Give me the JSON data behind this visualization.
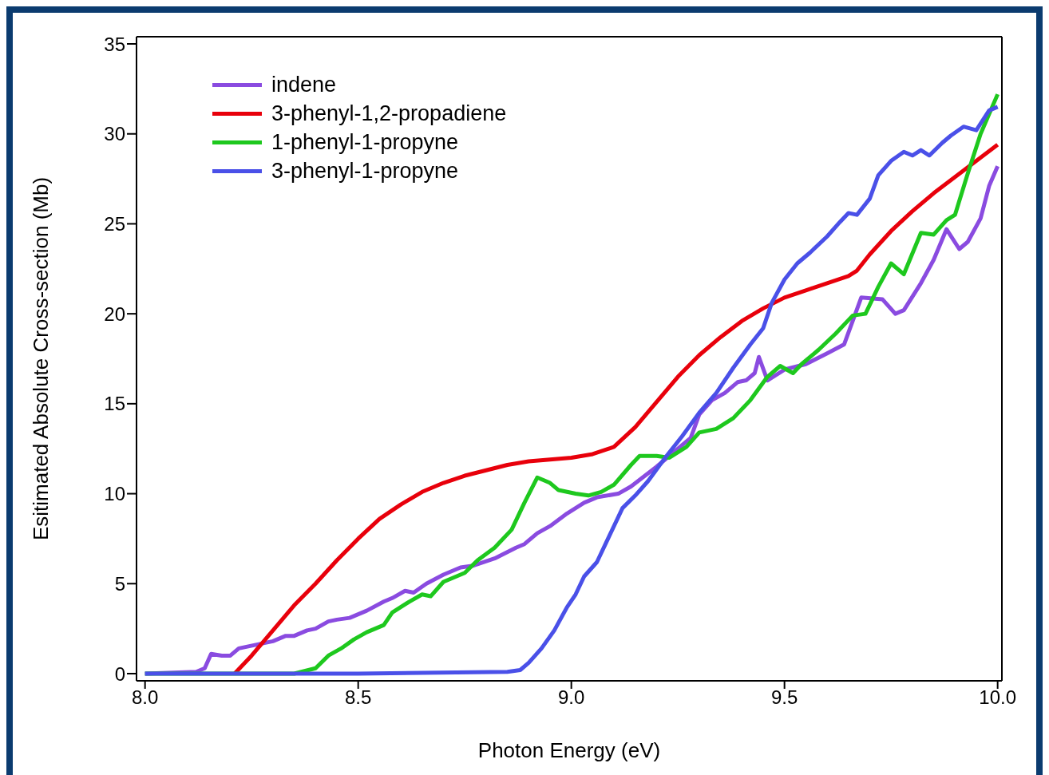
{
  "chart_data": {
    "type": "line",
    "xlabel": "Photon Energy (eV)",
    "ylabel": "Esitimated Absolute Cross-section (Mb)",
    "xlim": [
      7.98,
      10.01
    ],
    "xticks": [
      {
        "value": 8,
        "label": "8.0"
      },
      {
        "value": 8.5,
        "label": "8.5"
      },
      {
        "value": 9,
        "label": "9.0"
      },
      {
        "value": 9.5,
        "label": "9.5"
      },
      {
        "value": 10,
        "label": "10.0"
      }
    ],
    "ylim": [
      -0.4,
      35.4
    ],
    "yticks": [
      0,
      5,
      10,
      15,
      20,
      25,
      30,
      35
    ],
    "grid": false,
    "legend": "top left",
    "marker": "none",
    "line_style": "solid",
    "series": [
      {
        "name": "indene",
        "color": "#8a4be0",
        "x": [
          8.0,
          8.12,
          8.14,
          8.155,
          8.18,
          8.2,
          8.22,
          8.26,
          8.3,
          8.33,
          8.35,
          8.38,
          8.4,
          8.43,
          8.45,
          8.48,
          8.52,
          8.56,
          8.58,
          8.61,
          8.63,
          8.66,
          8.7,
          8.74,
          8.77,
          8.82,
          8.87,
          8.89,
          8.92,
          8.95,
          8.99,
          9.03,
          9.06,
          9.11,
          9.14,
          9.2,
          9.25,
          9.28,
          9.3,
          9.33,
          9.36,
          9.39,
          9.41,
          9.43,
          9.44,
          9.46,
          9.5,
          9.55,
          9.6,
          9.64,
          9.68,
          9.73,
          9.76,
          9.78,
          9.82,
          9.85,
          9.88,
          9.91,
          9.93,
          9.96,
          9.98,
          10.0
        ],
        "values": [
          0,
          0.1,
          0.3,
          1.1,
          1.0,
          1.0,
          1.4,
          1.6,
          1.8,
          2.1,
          2.1,
          2.4,
          2.5,
          2.9,
          3.0,
          3.1,
          3.5,
          4.0,
          4.2,
          4.6,
          4.5,
          5.0,
          5.5,
          5.9,
          6.0,
          6.4,
          7.0,
          7.2,
          7.8,
          8.2,
          8.9,
          9.5,
          9.8,
          10.0,
          10.4,
          11.5,
          12.5,
          13.1,
          14.4,
          15.2,
          15.6,
          16.2,
          16.3,
          16.7,
          17.6,
          16.3,
          16.9,
          17.2,
          17.8,
          18.3,
          20.9,
          20.8,
          20.0,
          20.2,
          21.7,
          23.0,
          24.7,
          23.6,
          24.0,
          25.3,
          27.1,
          28.2
        ]
      },
      {
        "name": "3-phenyl-1,2-propadiene",
        "color": "#e8000b",
        "x": [
          8.21,
          8.25,
          8.3,
          8.35,
          8.4,
          8.45,
          8.5,
          8.55,
          8.6,
          8.65,
          8.7,
          8.75,
          8.8,
          8.85,
          8.9,
          8.95,
          9.0,
          9.05,
          9.1,
          9.15,
          9.2,
          9.25,
          9.3,
          9.35,
          9.4,
          9.45,
          9.5,
          9.55,
          9.6,
          9.65,
          9.67,
          9.7,
          9.75,
          9.8,
          9.85,
          9.9,
          9.95,
          10.0
        ],
        "values": [
          0,
          1.0,
          2.4,
          3.8,
          5.0,
          6.3,
          7.5,
          8.6,
          9.4,
          10.1,
          10.6,
          11.0,
          11.3,
          11.6,
          11.8,
          11.9,
          12.0,
          12.2,
          12.6,
          13.7,
          15.1,
          16.5,
          17.7,
          18.7,
          19.6,
          20.3,
          20.9,
          21.3,
          21.7,
          22.1,
          22.4,
          23.3,
          24.6,
          25.7,
          26.7,
          27.6,
          28.5,
          29.4
        ]
      },
      {
        "name": "1-phenyl-1-propyne",
        "color": "#1ec81e",
        "x": [
          8.0,
          8.35,
          8.4,
          8.43,
          8.46,
          8.49,
          8.52,
          8.56,
          8.58,
          8.62,
          8.65,
          8.67,
          8.7,
          8.75,
          8.78,
          8.82,
          8.86,
          8.89,
          8.92,
          8.95,
          8.97,
          9.01,
          9.04,
          9.07,
          9.1,
          9.14,
          9.16,
          9.2,
          9.23,
          9.27,
          9.3,
          9.34,
          9.38,
          9.42,
          9.46,
          9.49,
          9.52,
          9.54,
          9.58,
          9.62,
          9.66,
          9.69,
          9.72,
          9.75,
          9.78,
          9.82,
          9.85,
          9.88,
          9.9,
          9.93,
          9.96,
          10.0
        ],
        "values": [
          0,
          0,
          0.3,
          1.0,
          1.4,
          1.9,
          2.3,
          2.7,
          3.4,
          4.0,
          4.4,
          4.3,
          5.1,
          5.6,
          6.3,
          7.0,
          8.0,
          9.5,
          10.9,
          10.6,
          10.2,
          10.0,
          9.9,
          10.1,
          10.5,
          11.6,
          12.1,
          12.1,
          12.0,
          12.6,
          13.4,
          13.6,
          14.2,
          15.2,
          16.5,
          17.1,
          16.7,
          17.2,
          18.0,
          18.9,
          19.9,
          20.0,
          21.5,
          22.8,
          22.2,
          24.5,
          24.4,
          25.2,
          25.5,
          27.8,
          30.0,
          32.2
        ]
      },
      {
        "name": "3-phenyl-1-propyne",
        "color": "#4a50e8",
        "x": [
          8.0,
          8.5,
          8.85,
          8.88,
          8.9,
          8.93,
          8.96,
          8.99,
          9.01,
          9.03,
          9.06,
          9.09,
          9.12,
          9.15,
          9.18,
          9.22,
          9.26,
          9.3,
          9.34,
          9.38,
          9.42,
          9.45,
          9.47,
          9.5,
          9.53,
          9.56,
          9.6,
          9.63,
          9.65,
          9.67,
          9.7,
          9.72,
          9.75,
          9.78,
          9.8,
          9.82,
          9.84,
          9.87,
          9.89,
          9.92,
          9.95,
          9.98,
          10.0
        ],
        "values": [
          0,
          0,
          0.1,
          0.2,
          0.6,
          1.4,
          2.4,
          3.7,
          4.4,
          5.4,
          6.2,
          7.7,
          9.2,
          9.9,
          10.7,
          12.0,
          13.2,
          14.5,
          15.6,
          17.0,
          18.3,
          19.2,
          20.6,
          21.9,
          22.8,
          23.4,
          24.3,
          25.1,
          25.6,
          25.5,
          26.4,
          27.7,
          28.5,
          29.0,
          28.8,
          29.1,
          28.8,
          29.5,
          29.9,
          30.4,
          30.2,
          31.3,
          31.5
        ]
      }
    ]
  }
}
